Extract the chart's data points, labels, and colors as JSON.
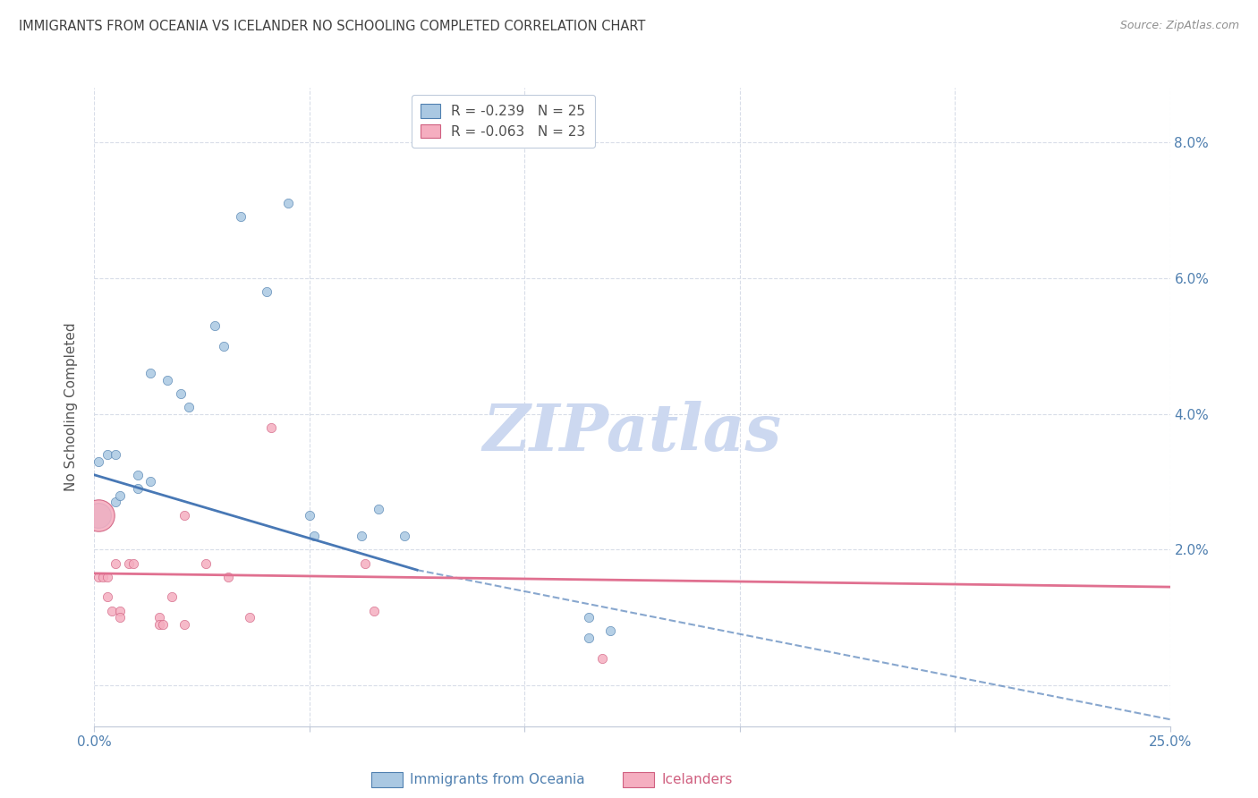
{
  "title": "IMMIGRANTS FROM OCEANIA VS ICELANDER NO SCHOOLING COMPLETED CORRELATION CHART",
  "source": "Source: ZipAtlas.com",
  "ylabel": "No Schooling Completed",
  "watermark": "ZIPatlas",
  "blue_label": "Immigrants from Oceania",
  "pink_label": "Icelanders",
  "blue_R": -0.239,
  "blue_N": 25,
  "pink_R": -0.063,
  "pink_N": 23,
  "xlim": [
    0.0,
    0.25
  ],
  "ylim": [
    -0.006,
    0.088
  ],
  "yticks": [
    0.0,
    0.02,
    0.04,
    0.06,
    0.08
  ],
  "ytick_labels_right": [
    "",
    "2.0%",
    "4.0%",
    "6.0%",
    "8.0%"
  ],
  "xticks": [
    0.0,
    0.05,
    0.1,
    0.15,
    0.2,
    0.25
  ],
  "xtick_labels": [
    "0.0%",
    "",
    "",
    "",
    "",
    "25.0%"
  ],
  "blue_points": [
    [
      0.001,
      0.033
    ],
    [
      0.003,
      0.034
    ],
    [
      0.005,
      0.034
    ],
    [
      0.005,
      0.027
    ],
    [
      0.006,
      0.028
    ],
    [
      0.01,
      0.031
    ],
    [
      0.01,
      0.029
    ],
    [
      0.013,
      0.046
    ],
    [
      0.013,
      0.03
    ],
    [
      0.017,
      0.045
    ],
    [
      0.02,
      0.043
    ],
    [
      0.022,
      0.041
    ],
    [
      0.028,
      0.053
    ],
    [
      0.03,
      0.05
    ],
    [
      0.034,
      0.069
    ],
    [
      0.04,
      0.058
    ],
    [
      0.045,
      0.071
    ],
    [
      0.05,
      0.025
    ],
    [
      0.051,
      0.022
    ],
    [
      0.062,
      0.022
    ],
    [
      0.066,
      0.026
    ],
    [
      0.072,
      0.022
    ],
    [
      0.115,
      0.01
    ],
    [
      0.12,
      0.008
    ],
    [
      0.115,
      0.007
    ]
  ],
  "blue_big_point": [
    0.001,
    0.025
  ],
  "blue_big_size": 400,
  "pink_points": [
    [
      0.001,
      0.016
    ],
    [
      0.002,
      0.016
    ],
    [
      0.003,
      0.016
    ],
    [
      0.003,
      0.013
    ],
    [
      0.004,
      0.011
    ],
    [
      0.005,
      0.018
    ],
    [
      0.006,
      0.011
    ],
    [
      0.006,
      0.01
    ],
    [
      0.008,
      0.018
    ],
    [
      0.009,
      0.018
    ],
    [
      0.015,
      0.01
    ],
    [
      0.015,
      0.009
    ],
    [
      0.016,
      0.009
    ],
    [
      0.018,
      0.013
    ],
    [
      0.021,
      0.025
    ],
    [
      0.021,
      0.009
    ],
    [
      0.026,
      0.018
    ],
    [
      0.031,
      0.016
    ],
    [
      0.036,
      0.01
    ],
    [
      0.041,
      0.038
    ],
    [
      0.063,
      0.018
    ],
    [
      0.065,
      0.011
    ],
    [
      0.118,
      0.004
    ]
  ],
  "pink_big_point": [
    0.001,
    0.025
  ],
  "pink_big_size": 650,
  "blue_line_solid": [
    [
      0.0,
      0.031
    ],
    [
      0.075,
      0.017
    ]
  ],
  "blue_line_dash": [
    [
      0.075,
      0.017
    ],
    [
      0.25,
      -0.005
    ]
  ],
  "pink_line": [
    [
      0.0,
      0.0165
    ],
    [
      0.25,
      0.0145
    ]
  ],
  "bg_color": "#ffffff",
  "blue_dot_color": "#aac8e2",
  "blue_edge_color": "#5080b0",
  "pink_dot_color": "#f5aec0",
  "pink_edge_color": "#d06080",
  "blue_line_color": "#4878b5",
  "pink_line_color": "#e07090",
  "grid_color": "#d8dde8",
  "watermark_color": "#ccd8f0",
  "title_color": "#404040",
  "tick_color": "#5080b0",
  "dot_size": 55,
  "legend_text_color": "#505050",
  "source_color": "#909090"
}
